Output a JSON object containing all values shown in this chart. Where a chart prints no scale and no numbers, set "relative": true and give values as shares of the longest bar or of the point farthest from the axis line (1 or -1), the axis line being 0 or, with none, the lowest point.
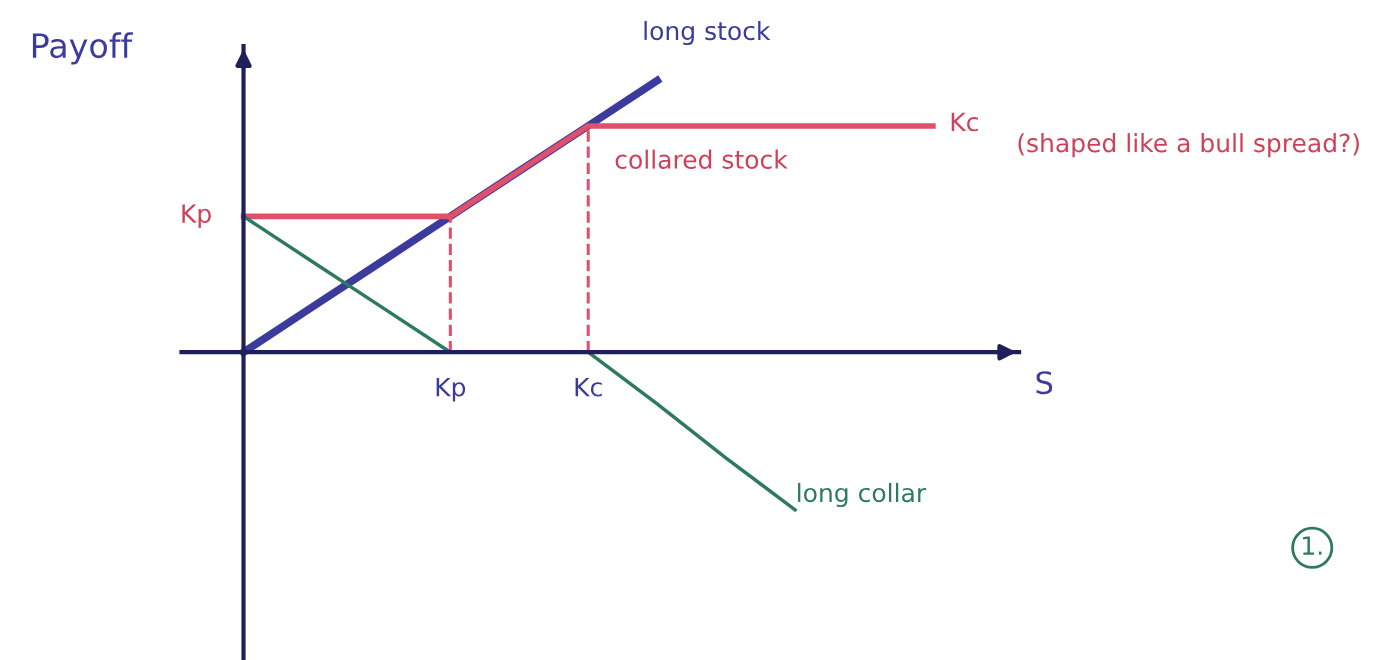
{
  "chart_data": {
    "type": "line",
    "relative": true,
    "ylabel": "Payoff",
    "xlabel": "S",
    "categories": [
      null,
      null,
      null,
      "Kp",
      null,
      "Kc",
      null,
      null,
      null,
      null,
      null,
      null
    ],
    "series": [
      {
        "color": "#3b3b9e",
        "values": [
          0,
          0.167,
          0.333,
          0.5,
          0.667,
          0.833,
          1.0,
          null,
          null,
          null,
          null,
          null
        ]
      },
      {
        "color": "#e0506a",
        "values": [
          0.5,
          0.5,
          0.5,
          0.5,
          0.667,
          0.833,
          0.833,
          0.833,
          0.833,
          0.833,
          0.833,
          null
        ]
      },
      {
        "color": "#2e7a5e",
        "values": [
          0.5,
          0.333,
          0.167,
          0,
          0,
          0,
          -0.19,
          -0.39,
          -0.58,
          null,
          null,
          null
        ]
      }
    ],
    "ref_lines": [
      {
        "axis": "x",
        "value": "Kp",
        "color": "#e0506a",
        "line_style": "dashed"
      },
      {
        "axis": "x",
        "value": "Kc",
        "color": "#e0506a",
        "line_style": "dashed"
      }
    ],
    "annotations": [
      "Kp",
      "Kc",
      "long stock",
      "collared stock",
      "long collar",
      "(shaped like a bull spread?)",
      "1."
    ]
  }
}
